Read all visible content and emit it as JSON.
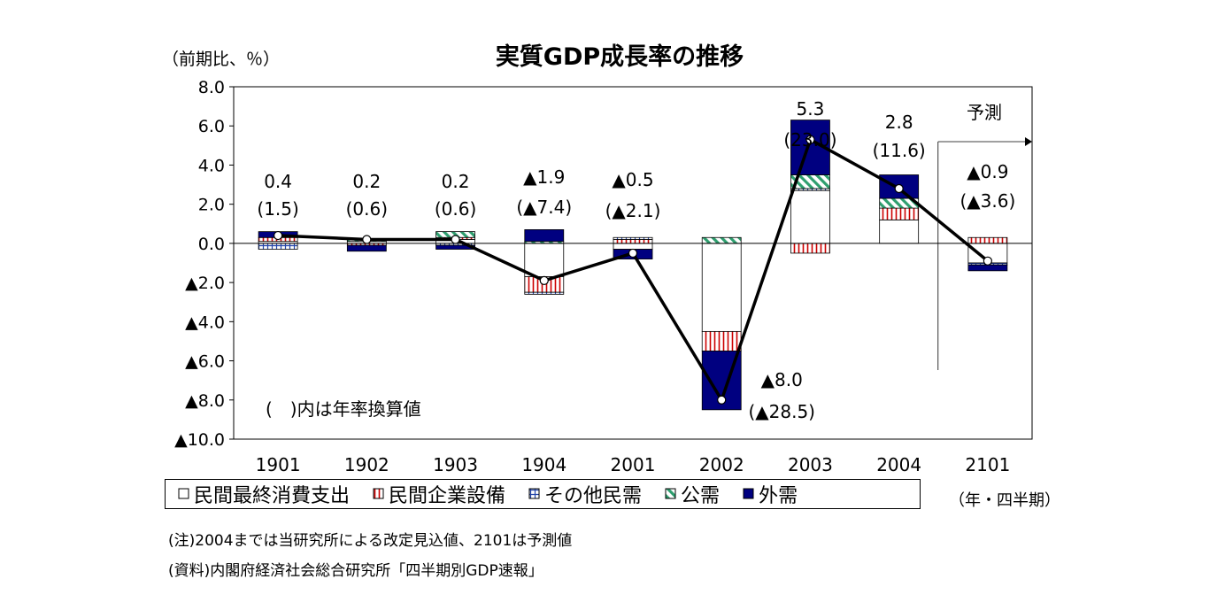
{
  "chart_data": {
    "type": "bar",
    "title": "実質GDP成長率の推移",
    "ylabel": "（前期比、％）",
    "xlabel": "（年・四半期）",
    "ylim": [
      -10,
      8
    ],
    "yticks": [
      8,
      6,
      4,
      2,
      0,
      -2,
      -4,
      -6,
      -8,
      -10
    ],
    "ytick_labels": [
      "8.0",
      "6.0",
      "4.0",
      "2.0",
      "0.0",
      "▲2.0",
      "▲4.0",
      "▲6.0",
      "▲8.0",
      "▲10.0"
    ],
    "categories": [
      "1901",
      "1902",
      "1903",
      "1904",
      "2001",
      "2002",
      "2003",
      "2004",
      "2101"
    ],
    "series": [
      {
        "name": "民間最終消費支出",
        "color": "#ffffff",
        "values": [
          0.1,
          0.1,
          0.2,
          -1.7,
          -0.3,
          -4.5,
          2.7,
          1.2,
          -1.0
        ]
      },
      {
        "name": "民間企業設備",
        "color": "#cc0000",
        "values": [
          0.2,
          -0.1,
          0.1,
          -0.8,
          0.2,
          -1.0,
          -0.5,
          0.6,
          0.3
        ]
      },
      {
        "name": "その他民需",
        "color": "#2244aa",
        "values": [
          -0.3,
          0.0,
          -0.1,
          -0.1,
          0.1,
          0.0,
          0.1,
          0.0,
          -0.1
        ]
      },
      {
        "name": "公需",
        "color": "#2e9e6e",
        "values": [
          0.0,
          0.1,
          0.3,
          0.1,
          0.0,
          0.3,
          0.7,
          0.5,
          0.0
        ]
      },
      {
        "name": "外需",
        "color": "#000080",
        "values": [
          0.3,
          -0.3,
          -0.2,
          0.6,
          -0.5,
          -3.0,
          2.8,
          1.2,
          -0.3
        ]
      }
    ],
    "total": {
      "name": "実質GDP成長率",
      "values": [
        0.4,
        0.2,
        0.2,
        -1.9,
        -0.5,
        -8.0,
        5.3,
        2.8,
        -0.9
      ]
    },
    "value_labels": [
      "0.4",
      "0.2",
      "0.2",
      "▲1.9",
      "▲0.5",
      "▲8.0",
      "5.3",
      "2.8",
      "▲0.9"
    ],
    "annual_labels": [
      "(1.5)",
      "(0.6)",
      "(0.6)",
      "(▲7.4)",
      "(▲2.1)",
      "(▲28.5)",
      "(23.0)",
      "(11.6)",
      "(▲3.6)"
    ],
    "forecast_label": "予測",
    "paren_note": "(　)内は年率換算値",
    "legend": "bottom",
    "grid": false
  },
  "notes": [
    "(注)2004までは当研究所による改定見込値、2101は予測値",
    "(資料)内閣府経済社会総合研究所「四半期別GDP速報」"
  ]
}
